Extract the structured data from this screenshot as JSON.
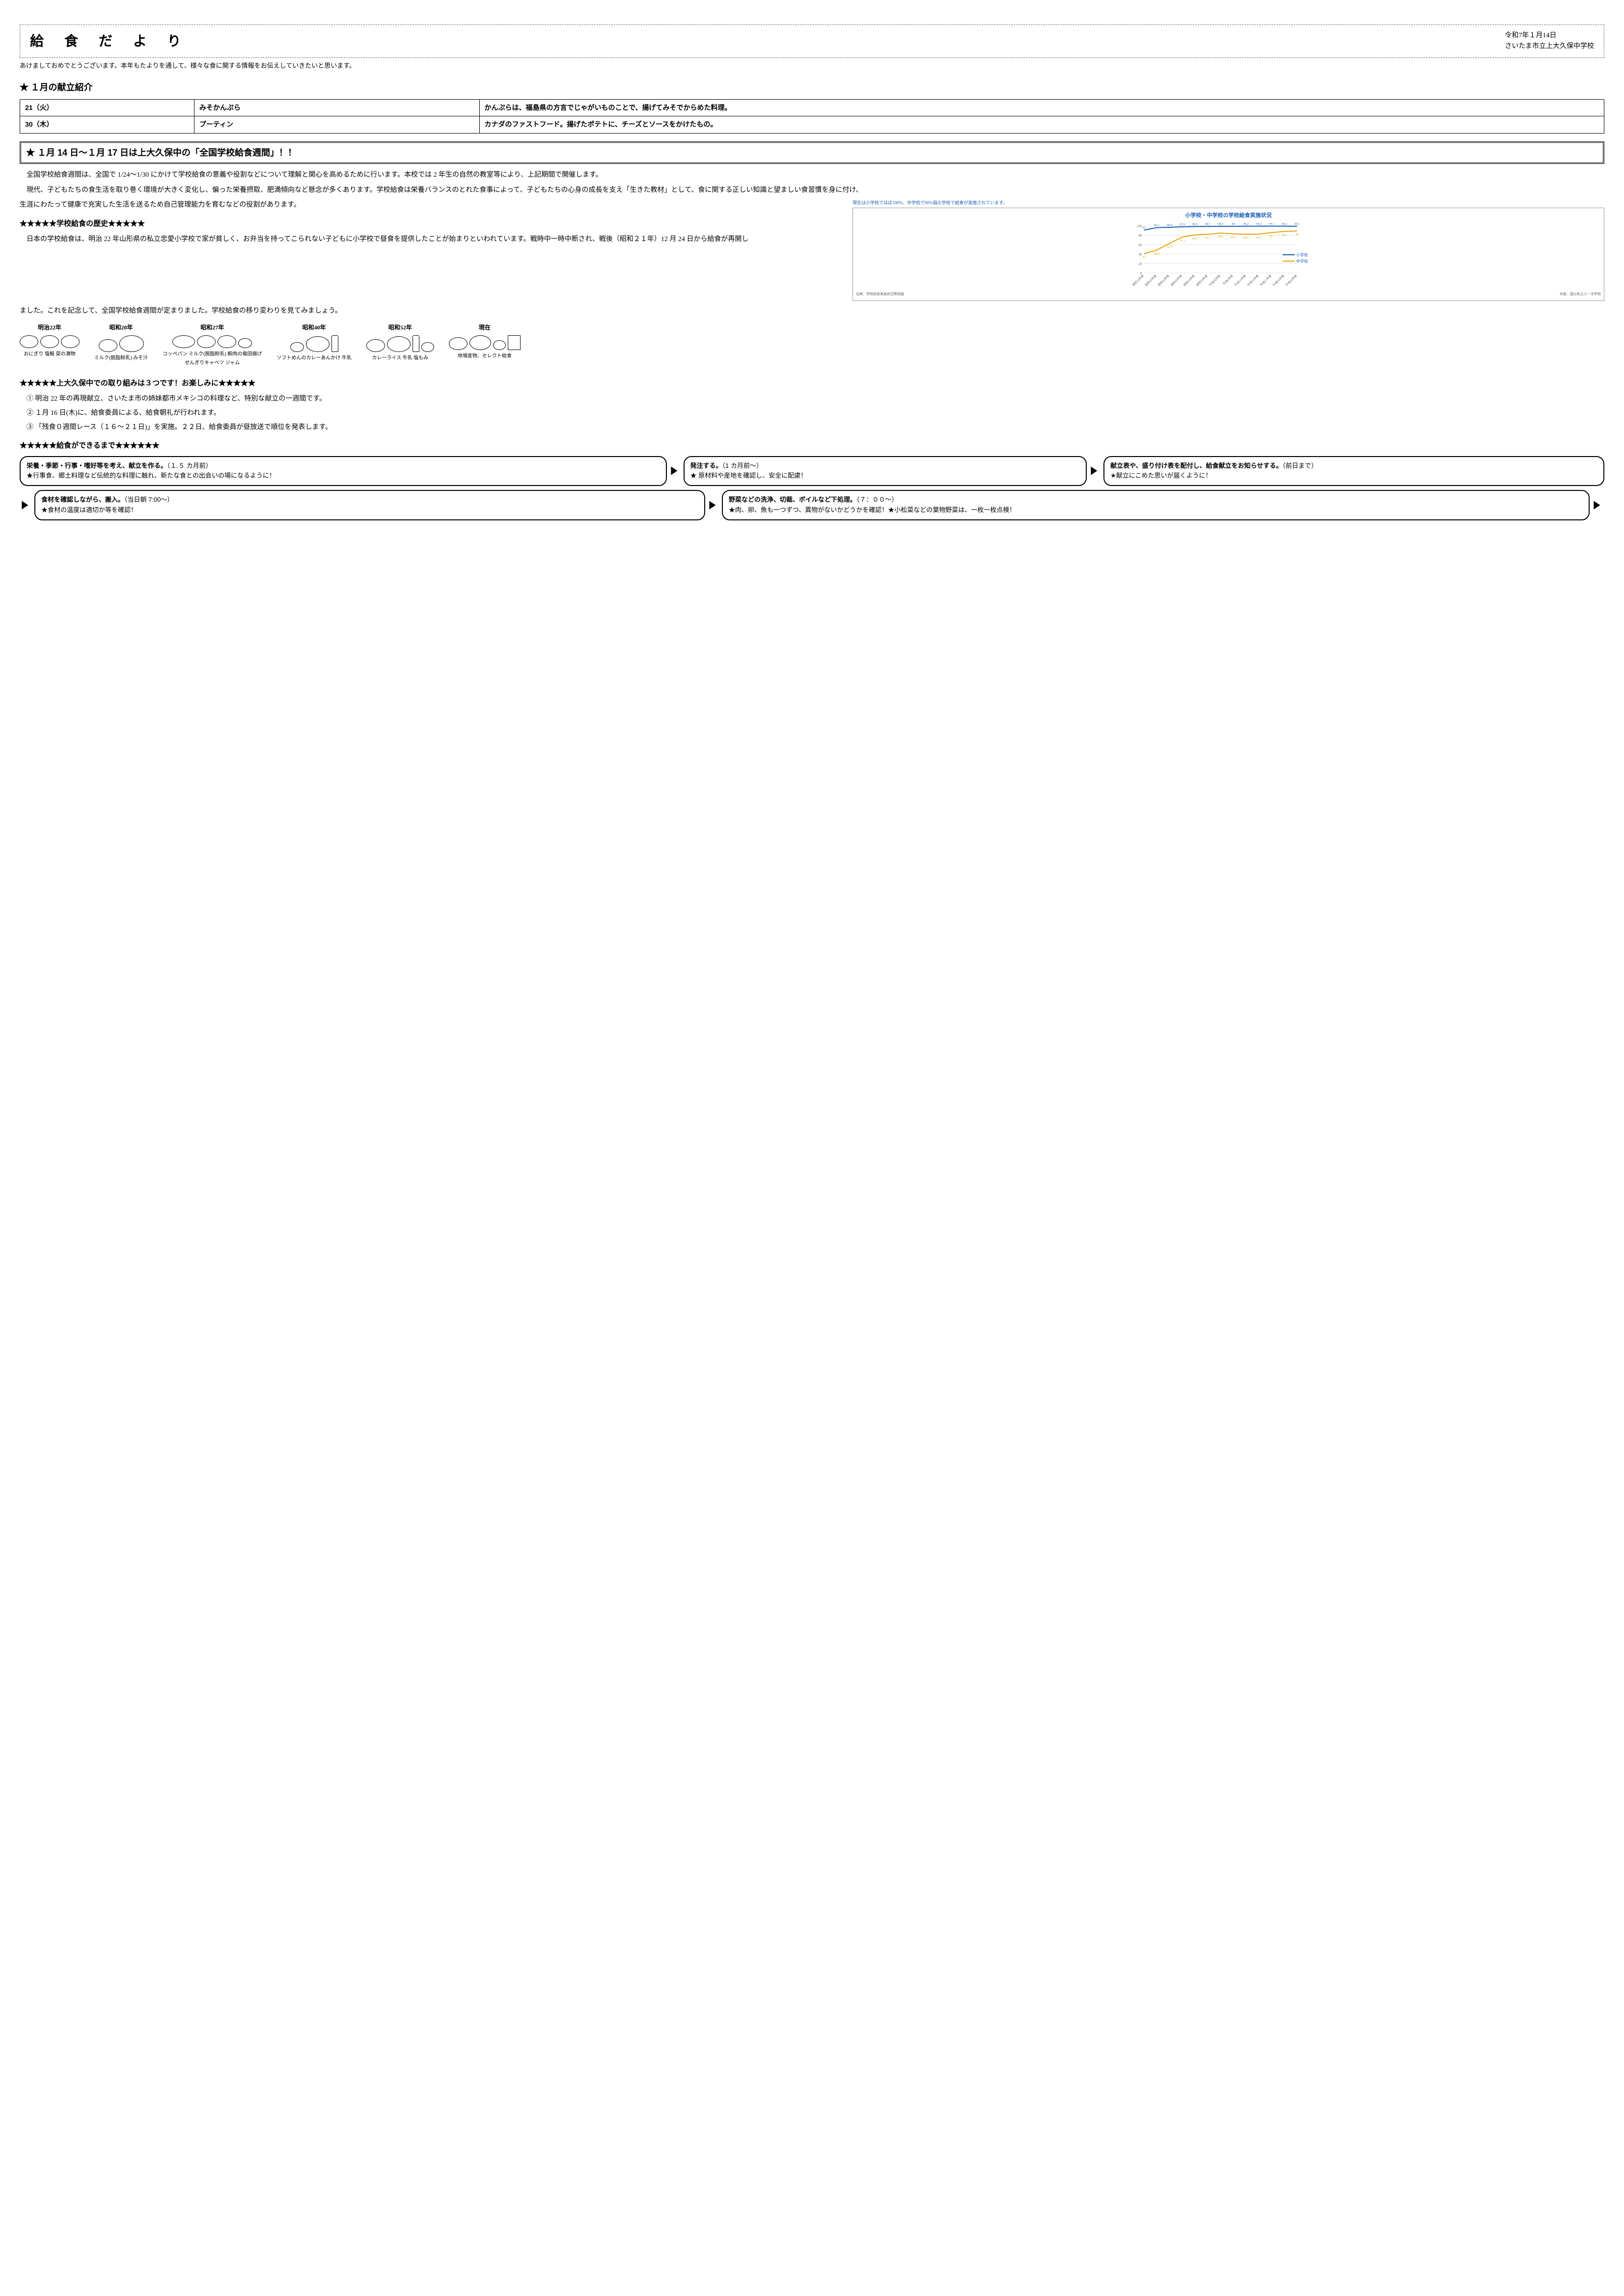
{
  "header": {
    "title": "給食だより",
    "date": "令和7年１月14日",
    "school": "さいたま市立上大久保中学校"
  },
  "intro": "あけましておめでとうございます。本年もたよりを通して、様々な食に関する情報をお伝えしていきたいと思います。",
  "menu_section": {
    "heading": "★ １月の献立紹介",
    "rows": [
      {
        "date": "21（火）",
        "name": "みそかんぷら",
        "desc": "かんぷらは、福島県の方言でじゃがいものことで、揚げてみそでからめた料理。"
      },
      {
        "date": "30（木）",
        "name": "プーティン",
        "desc": "カナダのファストフード。揚げたポテトに、チーズとソースをかけたもの。"
      }
    ]
  },
  "banner": "★ １月 14 日～１月 17 日は上大久保中の「全国学校給食週間」！！",
  "para1": "全国学校給食週間は、全国で 1/24～1/30 にかけて学校給食の意義や役割などについて理解と関心を高めるために行います。本校では 2 年生の自然の教室等により、上記期間で開催します。",
  "para2a": "現代、子どもたちの食生活を取り巻く環境が大きく変化し、偏った栄養摂取、肥満傾向など懸念が多くあります。学校給食は栄養バランスのとれた食事によって、子どもたちの心身の成長を支え「生きた教材」として、食に関する正しい知識と望ましい食習慣を身に付け、",
  "para2b": "生涯にわたって健康で充実した生活を送るため自己管理能力を育むなどの役割があります。",
  "history_heading": "★★★★★学校給食の歴史★★★★★",
  "history_text": "日本の学校給食は、明治 22 年山形県の私立忠愛小学校で家が貧しく、お弁当を持ってこられない子どもに小学校で昼食を提供したことが始まりといわれています。戦時中一時中断され、戦後（昭和２１年）12 月 24 日から給食が再開し",
  "history_text_after": "ました。これを記念して、全国学校給食週間が定まりました。学校給食の移り変わりを見てみましょう。",
  "chart": {
    "caption": "現在は小学校でほぼ100%、中学校で90%弱の学校で給食が実施されています。",
    "title": "小学校・中学校の学校給食実施状況",
    "legend": {
      "elem": "小学校",
      "junior": "中学校"
    },
    "footer_left": "出典：学校給食実施状況等調査",
    "footer_right": "対象：国公私立小・中学校",
    "colors": {
      "elem": "#1a5fb4",
      "junior": "#e5a50a",
      "text": "#1a5fb4"
    },
    "ylim": [
      0,
      100
    ],
    "ytick_step": 20,
    "x_labels": [
      "昭和34年度",
      "昭和39年度",
      "昭和44年度",
      "昭和49年度",
      "昭和54年度",
      "昭和59年度",
      "平成元年度",
      "平成6年度",
      "平成11年度",
      "平成16年度",
      "平成21年度",
      "平成26年度",
      "平成30年度"
    ],
    "elem_values": [
      91.0,
      96.1,
      96.9,
      97.9,
      98.5,
      98.7,
      98.9,
      99.0,
      99.2,
      99.2,
      99.3,
      99.2,
      99.1
    ],
    "junior_values": [
      41.0,
      48.4,
      62.8,
      76.1,
      80.6,
      82.1,
      84.6,
      83.1,
      82.2,
      82.6,
      85.7,
      88.1,
      89.0
    ]
  },
  "history_items": [
    {
      "era": "明治22年",
      "caption": "おにぎり 塩鮭 菜の漬物"
    },
    {
      "era": "昭和20年",
      "caption": "ミルク(脱脂粉乳) みそ汁"
    },
    {
      "era": "昭和27年",
      "caption": "コッペパン ミルク(脱脂粉乳) 鯨肉の竜田揚げ\nせんぎりキャベツ ジャム"
    },
    {
      "era": "昭和40年",
      "caption": "ソフトめんのカレーあんかけ 牛乳"
    },
    {
      "era": "昭和52年",
      "caption": "カレーライス 牛乳 塩もみ"
    },
    {
      "era": "現在",
      "caption": "地場産物、セレクト給食"
    }
  ],
  "activities": {
    "heading": "★★★★★上大久保中での取り組みは３つです！お楽しみに★★★★★",
    "items": [
      "① 明治 22 年の再現献立、さいたま市の姉妹都市メキシコの料理など、特別な献立の一週間です。",
      "② １月 16 日(木)に、給食委員による、給食朝礼が行われます。",
      "③ 「残食０週間レース（１６～２１日)」を実施。２２日、給食委員が昼放送で順位を発表します。"
    ]
  },
  "process": {
    "heading": "★★★★★給食ができるまで★★★★★★",
    "row1": [
      {
        "bold": "栄養・季節・行事・嗜好等を考え、献立を作る。",
        "time": "（１.５ カ月前）",
        "note": "★行事食、郷土料理など伝統的な料理に触れ、新たな食との出会いの場になるように！"
      },
      {
        "bold": "発注する。",
        "time": "（1 カ月前～）",
        "note": "★ 原材料や産地を確認し、安全に配慮！"
      },
      {
        "bold": "献立表や、盛り付け表を配付し、給食献立をお知らせする。",
        "time": "（前日まで）",
        "note": "★献立にこめた思いが届くように！"
      }
    ],
    "row2": [
      {
        "bold": "食材を確認しながら、搬入。",
        "time": "（当日朝 7:00～）",
        "note": "★食材の温度は適切か等を確認！"
      },
      {
        "bold": "野菜などの洗浄、切裁、ボイルなど下処理。",
        "time": "（７：００～）",
        "note": "★肉、卵、魚も一つずつ、異物がないかどうかを確認！★小松菜などの葉物野菜は、一枚一枚点検！"
      }
    ]
  }
}
